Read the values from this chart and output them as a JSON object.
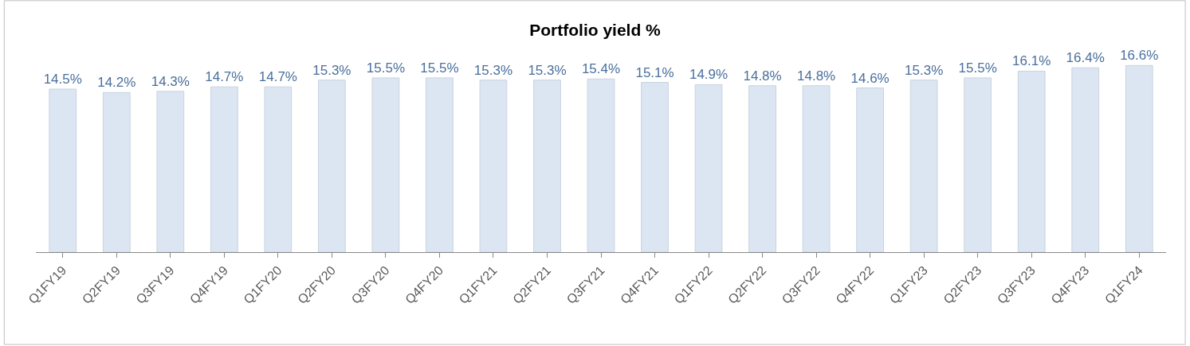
{
  "chart_data": {
    "type": "bar",
    "title": "Portfolio yield %",
    "categories": [
      "Q1FY19",
      "Q2FY19",
      "Q3FY19",
      "Q4FY19",
      "Q1FY20",
      "Q2FY20",
      "Q3FY20",
      "Q4FY20",
      "Q1FY21",
      "Q2FY21",
      "Q3FY21",
      "Q4FY21",
      "Q1FY22",
      "Q2FY22",
      "Q3FY22",
      "Q4FY22",
      "Q1FY23",
      "Q2FY23",
      "Q3FY23",
      "Q4FY23",
      "Q1FY24"
    ],
    "values": [
      14.5,
      14.2,
      14.3,
      14.7,
      14.7,
      15.3,
      15.5,
      15.5,
      15.3,
      15.3,
      15.4,
      15.1,
      14.9,
      14.8,
      14.8,
      14.6,
      15.3,
      15.5,
      16.1,
      16.4,
      16.6
    ],
    "value_labels": [
      "14.5%",
      "14.2%",
      "14.3%",
      "14.7%",
      "14.7%",
      "15.3%",
      "15.5%",
      "15.5%",
      "15.3%",
      "15.3%",
      "15.4%",
      "15.1%",
      "14.9%",
      "14.8%",
      "14.8%",
      "14.6%",
      "15.3%",
      "15.5%",
      "16.1%",
      "16.4%",
      "16.6%"
    ],
    "color": "#dce6f2",
    "tick_labels": "x"
  }
}
